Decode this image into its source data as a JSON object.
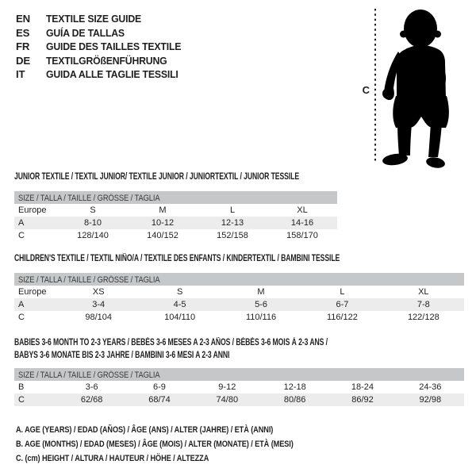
{
  "colors": {
    "text": "#1f1f1f",
    "header_bar": "#c6c7c8",
    "row_shade": "#ececec",
    "silhouette": "#000000"
  },
  "languages": [
    {
      "code": "EN",
      "title": "TEXTILE SIZE GUIDE"
    },
    {
      "code": "ES",
      "title": "GUÍA DE TALLAS"
    },
    {
      "code": "FR",
      "title": "GUIDE DES TAILLES TEXTILE"
    },
    {
      "code": "DE",
      "title": "TEXTILGRÖßENFÜHRUNG"
    },
    {
      "code": "IT",
      "title": "GUIDA ALLE TAGLIE TESSILI"
    }
  ],
  "figure": {
    "label": "C"
  },
  "tables": [
    {
      "title_lines": [
        "JUNIOR TEXTILE / TEXTIL JUNIOR/ TEXTILE JUNIOR / JUNIORTEXTIL / JUNIOR TESSILE"
      ],
      "size_header": "SIZE / TALLA / TAILLE / GRÖSSE / TAGLIA",
      "rows": [
        {
          "label": "Europe",
          "values": [
            "S",
            "M",
            "L",
            "XL"
          ],
          "shaded": false
        },
        {
          "label": "A",
          "values": [
            "8-10",
            "10-12",
            "12-13",
            "14-16"
          ],
          "shaded": true
        },
        {
          "label": "C",
          "values": [
            "128/140",
            "140/152",
            "152/158",
            "158/170"
          ],
          "shaded": false
        }
      ]
    },
    {
      "title_lines": [
        "CHILDREN'S TEXTILE / TEXTIL NIÑO/A / TEXTILE DES ENFANTS / KINDERTEXTIL / BAMBINI TESSILE"
      ],
      "size_header": "SIZE / TALLA / TAILLE / GRÖSSE / TAGLIA",
      "rows": [
        {
          "label": "Europe",
          "values": [
            "XS",
            "S",
            "M",
            "L",
            "XL"
          ],
          "shaded": false
        },
        {
          "label": "A",
          "values": [
            "3-4",
            "4-5",
            "5-6",
            "6-7",
            "7-8"
          ],
          "shaded": true
        },
        {
          "label": "C",
          "values": [
            "98/104",
            "104/110",
            "110/116",
            "116/122",
            "122/128"
          ],
          "shaded": false
        }
      ]
    },
    {
      "title_lines": [
        "BABIES 3-6 MONTH TO 2-3 YEARS / BEBÉS 3-6 MESES A 2-3 AÑOS / BÉBÉS 3-6 MOIS À 2-3 ANS /",
        "BABYS 3-6 MONATE BIS 2-3 JAHRE / BAMBINI 3-6 MESI A 2-3 ANNI"
      ],
      "size_header": "SIZE / TALLA / TAILLE / GRÖSSE / TAGLIA",
      "rows": [
        {
          "label": "B",
          "values": [
            "3-6",
            "6-9",
            "9-12",
            "12-18",
            "18-24",
            "24-36"
          ],
          "shaded": false
        },
        {
          "label": "C",
          "values": [
            "62/68",
            "68/74",
            "74/80",
            "80/86",
            "86/92",
            "92/98"
          ],
          "shaded": true
        }
      ]
    }
  ],
  "notes": [
    "A. AGE (YEARS) / EDAD (AÑOS) / ÂGE (ANS) / ALTER (JAHRE) / ETÀ (ANNI)",
    "B. AGE (MONTHS) / EDAD (MESES) / ÂGE (MOIS) / ALTER (MONATE) / ETÀ (MESI)",
    "C. (cm) HEIGHT / ALTURA / HAUTEUR / HÖHE / ALTEZZA"
  ]
}
